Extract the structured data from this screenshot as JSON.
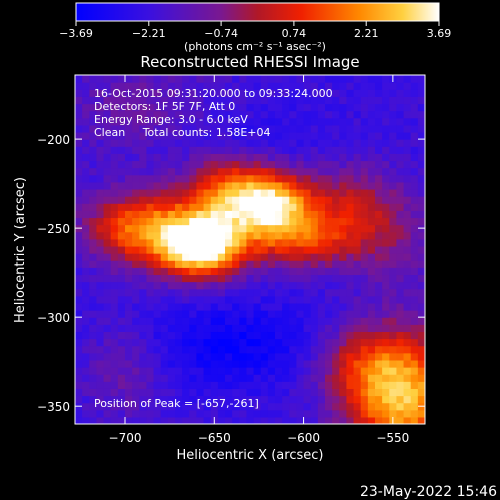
{
  "chart_data": {
    "type": "heatmap",
    "title": "Reconstructed RHESSI Image",
    "xlabel": "Heliocentric X (arcsec)",
    "ylabel": "Heliocentric Y (arcsec)",
    "xlim": [
      -728,
      -532
    ],
    "ylim": [
      -360,
      -164
    ],
    "x_ticks": [
      -700,
      -650,
      -600,
      -550
    ],
    "x_tick_labels": [
      "−700",
      "−650",
      "−600",
      "−550"
    ],
    "y_ticks": [
      -200,
      -250,
      -300,
      -350
    ],
    "y_tick_labels": [
      "−200",
      "−250",
      "−300",
      "−350"
    ],
    "colorbar": {
      "ticks": [
        -3.69,
        -2.21,
        -0.74,
        0.74,
        2.21,
        3.69
      ],
      "tick_labels": [
        "−3.69",
        "−2.21",
        "−0.74",
        "0.74",
        "2.21",
        "3.69"
      ],
      "unit_label": "(photons cm⁻² s⁻¹ asec⁻²)",
      "range": [
        -3.69,
        3.69
      ]
    },
    "info_lines": [
      "16-Oct-2015 09:31:20.000 to 09:33:24.000",
      "Detectors: 1F 5F 7F, Att 0",
      "Energy Range: 3.0 - 6.0 keV",
      "Clean     Total counts: 1.58E+04"
    ],
    "peak_text": "Position of Peak = [-657,-261]",
    "peak": [
      -657,
      -261
    ],
    "peak_value": 3.69,
    "grid": false
  },
  "footer": {
    "date": "23-May-2022 15:46"
  }
}
